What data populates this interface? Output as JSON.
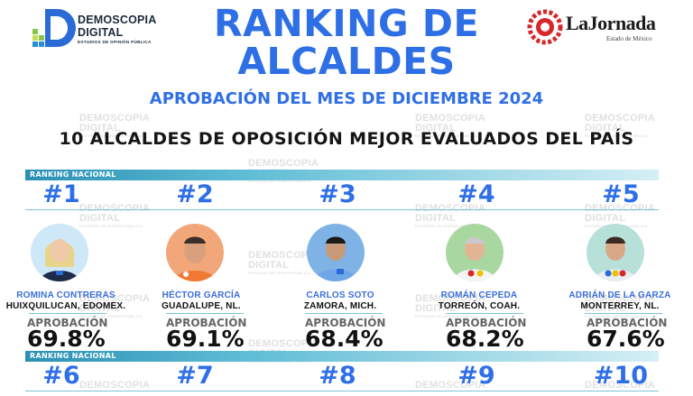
{
  "header": {
    "left_logo": {
      "line1": "DEMOSCOPIA",
      "line2": "DIGITAL",
      "line3": "ESTUDIOS DE OPINIÓN PÚBLICA"
    },
    "title_line1": "RANKING DE",
    "title_line2": "ALCALDES",
    "subtitle": "APROBACIÓN DEL MES DE DICIEMBRE 2024",
    "right_logo": {
      "name": "LaJornada",
      "tagline": "Estado de México"
    }
  },
  "heading": "10 ALCALDES DE OPOSICIÓN MEJOR EVALUADOS DEL PAÍS",
  "section_label": "RANKING NACIONAL",
  "approval_label": "APROBACIÓN",
  "watermark": {
    "line1": "DEMOSCOPIA",
    "line2": "DIGITAL",
    "line3": "ESTUDIOS DE OPINIÓN PÚBLICA"
  },
  "top5": [
    {
      "rank": "#1",
      "name": "ROMINA CONTRERAS",
      "location": "HUIXQUILUCAN, EDOMEX.",
      "approval": "69.8%"
    },
    {
      "rank": "#2",
      "name": "HÉCTOR GARCÍA",
      "location": "GUADALUPE, NL.",
      "approval": "69.1%"
    },
    {
      "rank": "#3",
      "name": "CARLOS SOTO",
      "location": "ZAMORA, MICH.",
      "approval": "68.4%"
    },
    {
      "rank": "#4",
      "name": "ROMÁN CEPEDA",
      "location": "TORREÓN, COAH.",
      "approval": "68.2%"
    },
    {
      "rank": "#5",
      "name": "ADRIÁN DE LA GARZA",
      "location": "MONTERREY, NL.",
      "approval": "67.6%"
    }
  ],
  "next5": [
    {
      "rank": "#6"
    },
    {
      "rank": "#7"
    },
    {
      "rank": "#8"
    },
    {
      "rank": "#9"
    },
    {
      "rank": "#10"
    }
  ],
  "colors": {
    "accent_blue": "#2f6fe6",
    "bar_teal": "#2b8fb4",
    "name_blue": "#3b6fd8"
  }
}
